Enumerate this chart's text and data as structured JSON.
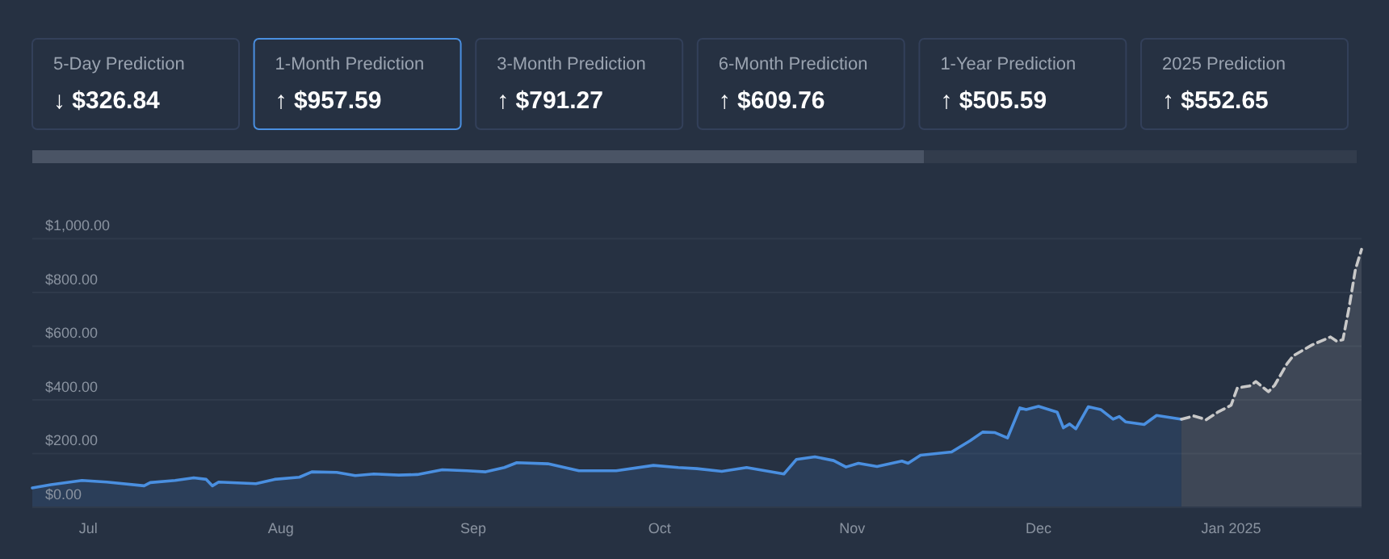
{
  "chart_data": {
    "type": "area",
    "annotations": [
      "5-Day Prediction",
      "↓ $326.84",
      "1-Month Prediction",
      "↑ $957.59",
      "3-Month Prediction",
      "↑ $791.27",
      "6-Month Prediction",
      "↑ $609.76",
      "1-Year Prediction",
      "↑ $505.59",
      "2025 Prediction",
      "↑ $552.65"
    ],
    "xlim": [
      "2024-06-22",
      "2025-01-22"
    ],
    "xticks": [
      {
        "value": "2024-07-01",
        "label": "Jul"
      },
      {
        "value": "2024-08-01",
        "label": "Aug"
      },
      {
        "value": "2024-09-01",
        "label": "Sep"
      },
      {
        "value": "2024-10-01",
        "label": "Oct"
      },
      {
        "value": "2024-11-01",
        "label": "Nov"
      },
      {
        "value": "2024-12-01",
        "label": "Dec"
      },
      {
        "value": "2025-01-01",
        "label": "Jan 2025"
      }
    ],
    "ylim": [
      0,
      1000
    ],
    "yticks": [
      {
        "value": 0,
        "label": "$0.00"
      },
      {
        "value": 200,
        "label": "$200.00"
      },
      {
        "value": 400,
        "label": "$400.00"
      },
      {
        "value": 600,
        "label": "$600.00"
      },
      {
        "value": 800,
        "label": "$800.00"
      },
      {
        "value": 1000,
        "label": "$1,000.00"
      }
    ],
    "grid": "y",
    "series": [
      {
        "color": "#4a8fe0",
        "line_style": "solid",
        "x": [
          "2024-06-22",
          "2024-06-25",
          "2024-06-30",
          "2024-07-04",
          "2024-07-10",
          "2024-07-11",
          "2024-07-15",
          "2024-07-18",
          "2024-07-20",
          "2024-07-21",
          "2024-07-22",
          "2024-07-28",
          "2024-07-31",
          "2024-08-04",
          "2024-08-06",
          "2024-08-10",
          "2024-08-13",
          "2024-08-16",
          "2024-08-20",
          "2024-08-23",
          "2024-08-27",
          "2024-08-31",
          "2024-09-03",
          "2024-09-06",
          "2024-09-08",
          "2024-09-13",
          "2024-09-18",
          "2024-09-24",
          "2024-09-30",
          "2024-10-04",
          "2024-10-07",
          "2024-10-11",
          "2024-10-15",
          "2024-10-21",
          "2024-10-23",
          "2024-10-26",
          "2024-10-29",
          "2024-10-31",
          "2024-11-02",
          "2024-11-05",
          "2024-11-09",
          "2024-11-10",
          "2024-11-12",
          "2024-11-17",
          "2024-11-20",
          "2024-11-22",
          "2024-11-24",
          "2024-11-26",
          "2024-11-28",
          "2024-11-29",
          "2024-12-01",
          "2024-12-04",
          "2024-12-05",
          "2024-12-06",
          "2024-12-07",
          "2024-12-09",
          "2024-12-11",
          "2024-12-13",
          "2024-12-14",
          "2024-12-15",
          "2024-12-18",
          "2024-12-20",
          "2024-12-24"
        ],
        "values": [
          72,
          84,
          100,
          94,
          80,
          92,
          100,
          110,
          104,
          80,
          94,
          88,
          104,
          112,
          132,
          130,
          118,
          124,
          120,
          122,
          140,
          136,
          132,
          148,
          166,
          162,
          136,
          136,
          156,
          148,
          144,
          134,
          148,
          124,
          178,
          188,
          174,
          150,
          164,
          152,
          172,
          164,
          194,
          206,
          248,
          280,
          278,
          258,
          370,
          364,
          376,
          354,
          296,
          310,
          292,
          374,
          364,
          328,
          338,
          318,
          308,
          342,
          328
        ]
      },
      {
        "color": "#c8c8c8",
        "line_style": "dashed",
        "x": [
          "2024-12-24",
          "2024-12-26",
          "2024-12-28",
          "2024-12-30",
          "2025-01-01",
          "2025-01-02",
          "2025-01-04",
          "2025-01-05",
          "2025-01-07",
          "2025-01-08",
          "2025-01-10",
          "2025-01-11",
          "2025-01-14",
          "2025-01-17",
          "2025-01-18",
          "2025-01-19",
          "2025-01-20",
          "2025-01-21",
          "2025-01-22"
        ],
        "values": [
          328,
          340,
          326,
          356,
          380,
          444,
          452,
          468,
          430,
          454,
          534,
          564,
          604,
          634,
          618,
          624,
          744,
          884,
          960
        ]
      }
    ]
  }
}
